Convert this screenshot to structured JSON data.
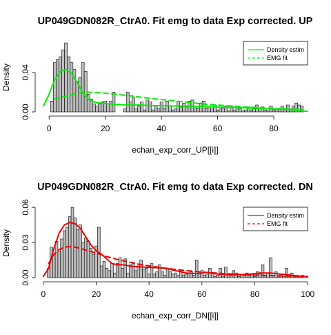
{
  "chart_data": [
    {
      "type": "bar",
      "title": "UP049GDN082R_CtrA0. Fit emg to data Exp corrected. UP",
      "xlabel": "echan_exp_corr_UP[[i]]",
      "ylabel": "Density",
      "xlim": [
        -3,
        93
      ],
      "ylim": [
        0,
        0.075
      ],
      "xticks": [
        "0",
        "20",
        "40",
        "60",
        "80"
      ],
      "yticks": [
        "0.00",
        "0.04"
      ],
      "grid": false,
      "legend_position": "top-right",
      "bin_width": 1,
      "bins_x": [
        1,
        2,
        3,
        4,
        5,
        6,
        7,
        8,
        9,
        10,
        11,
        12,
        13,
        14,
        15,
        16,
        17,
        18,
        19,
        20,
        21,
        22,
        23,
        27,
        28,
        29,
        30,
        31,
        32,
        33,
        34,
        35,
        36,
        37,
        38,
        39,
        40,
        41,
        42,
        43,
        44,
        45,
        46,
        47,
        48,
        49,
        50,
        51,
        52,
        53,
        54,
        55,
        56,
        57,
        58,
        59,
        60,
        61,
        62,
        63,
        64,
        65,
        66,
        67,
        68,
        69,
        70,
        71,
        72,
        73,
        74,
        75,
        76,
        77,
        78,
        79,
        80,
        81,
        82,
        83,
        84,
        85,
        86,
        87,
        88,
        89,
        90
      ],
      "density": [
        0.011,
        0.05,
        0.053,
        0.056,
        0.063,
        0.07,
        0.056,
        0.05,
        0.043,
        0.031,
        0.035,
        0.05,
        0.041,
        0.018,
        0.013,
        0.008,
        0.006,
        0.008,
        0.01,
        0.011,
        0.008,
        0.011,
        0.02,
        0.003,
        0.02,
        0.01,
        0.015,
        0.003,
        0.006,
        0.01,
        0.002,
        0.012,
        0.01,
        0.002,
        0.006,
        0.003,
        0.01,
        0.004,
        0.011,
        0.006,
        0.002,
        0.003,
        0.011,
        0.005,
        0.009,
        0.005,
        0.011,
        0.012,
        0.006,
        0.004,
        0.009,
        0.011,
        0.004,
        0.005,
        0.003,
        0.007,
        0.002,
        0.003,
        0.004,
        0.006,
        0.001,
        0.006,
        0.002,
        0.006,
        0.003,
        0.001,
        0.002,
        0.005,
        0.002,
        0.003,
        0.007,
        0.003,
        0.005,
        0.002,
        0.001,
        0.006,
        0.002,
        0.003,
        0.001,
        0.006,
        0.003,
        0.007,
        0.003,
        0.006,
        0.009,
        0.007,
        0.006
      ],
      "series": [
        {
          "name": "Density estim",
          "color": "#00ee00",
          "dash": "solid",
          "x": [
            -2,
            0,
            2,
            4,
            6,
            8,
            10,
            12,
            14,
            16,
            18,
            20,
            24,
            28,
            32,
            36,
            40,
            45,
            50,
            55,
            60,
            65,
            70,
            75,
            80,
            85,
            90,
            92
          ],
          "y": [
            0.006,
            0.018,
            0.033,
            0.041,
            0.043,
            0.039,
            0.03,
            0.019,
            0.013,
            0.01,
            0.009,
            0.0085,
            0.0075,
            0.007,
            0.007,
            0.0065,
            0.0063,
            0.006,
            0.0058,
            0.0055,
            0.005,
            0.0045,
            0.004,
            0.0035,
            0.003,
            0.0025,
            0.001,
            0.0005
          ]
        },
        {
          "name": "EMG fit",
          "color": "#00ee00",
          "dash": "dashed",
          "x": [
            2,
            4,
            6,
            8,
            10,
            12,
            14,
            18,
            20,
            25,
            30,
            35,
            40,
            45,
            50,
            55,
            60,
            65,
            70,
            75,
            80,
            85,
            90
          ],
          "y": [
            0.013,
            0.0145,
            0.016,
            0.0175,
            0.019,
            0.0195,
            0.02,
            0.0195,
            0.019,
            0.0175,
            0.016,
            0.014,
            0.0125,
            0.011,
            0.0095,
            0.008,
            0.007,
            0.006,
            0.005,
            0.0043,
            0.0036,
            0.003,
            0.0025
          ]
        }
      ]
    },
    {
      "type": "bar",
      "title": "UP049GDN082R_CtrA0. Fit emg to data Exp corrected. DN",
      "xlabel": "echan_exp_corr_DN[[i]]",
      "ylabel": "Density",
      "xlim": [
        -1,
        101
      ],
      "ylim": [
        0,
        0.063
      ],
      "xticks": [
        "0",
        "20",
        "40",
        "60",
        "80",
        "100"
      ],
      "yticks": [
        "0.00",
        "0.03",
        "0.06"
      ],
      "grid": false,
      "legend_position": "top-right",
      "bin_width": 1,
      "bins_x": [
        2,
        3,
        4,
        5,
        6,
        7,
        8,
        9,
        10,
        11,
        12,
        13,
        14,
        15,
        16,
        17,
        18,
        19,
        20,
        21,
        22,
        23,
        24,
        25,
        26,
        27,
        28,
        29,
        30,
        31,
        32,
        33,
        34,
        35,
        36,
        37,
        38,
        39,
        40,
        41,
        42,
        43,
        44,
        45,
        46,
        47,
        48,
        49,
        50,
        51,
        52,
        53,
        54,
        55,
        56,
        57,
        58,
        59,
        60,
        61,
        62,
        63,
        64,
        65,
        66,
        67,
        68,
        69,
        70,
        71,
        72,
        73,
        74,
        75,
        76,
        77,
        78,
        79,
        80,
        81,
        82,
        83,
        84,
        85,
        86,
        87,
        88,
        89,
        90,
        91,
        92,
        93,
        94,
        95,
        96,
        97,
        98
      ],
      "density": [
        0.008,
        0.026,
        0.02,
        0.031,
        0.022,
        0.033,
        0.04,
        0.043,
        0.052,
        0.06,
        0.051,
        0.041,
        0.045,
        0.03,
        0.034,
        0.031,
        0.025,
        0.02,
        0.027,
        0.043,
        0.01,
        0.014,
        0.008,
        0.006,
        0.012,
        0.004,
        0.012,
        0.017,
        0.008,
        0.016,
        0.004,
        0.011,
        0.013,
        0.006,
        0.01,
        0.015,
        0.007,
        0.008,
        0.003,
        0.012,
        0.003,
        0.005,
        0.011,
        0.005,
        0.002,
        0.008,
        0.005,
        0.003,
        0.004,
        0.002,
        0.006,
        0.002,
        0.003,
        0.004,
        0.005,
        0.002,
        0.015,
        0.004,
        0.006,
        0.002,
        0.003,
        0.008,
        0.004,
        0.001,
        0.002,
        0.008,
        0.001,
        0.009,
        0.003,
        0.002,
        0.006,
        0.004,
        0.001,
        0.003,
        0.002,
        0.004,
        0.002,
        0.003,
        0.001,
        0.005,
        0.003,
        0.011,
        0.002,
        0.004,
        0.017,
        0.002,
        0.005,
        0.002,
        0.003,
        0.001,
        0.008,
        0.002,
        0.004,
        0.001,
        0.002,
        0.001,
        0.002
      ],
      "series": [
        {
          "name": "Density estim",
          "color": "#ee0000",
          "dash": "solid",
          "x": [
            0,
            2,
            4,
            6,
            8,
            10,
            12,
            14,
            16,
            18,
            20,
            22,
            24,
            26,
            28,
            30,
            34,
            38,
            42,
            46,
            50,
            54,
            58,
            62,
            66,
            70,
            74,
            78,
            82,
            86,
            90,
            94,
            98,
            100
          ],
          "y": [
            0.001,
            0.008,
            0.025,
            0.038,
            0.045,
            0.047,
            0.046,
            0.042,
            0.035,
            0.028,
            0.023,
            0.02,
            0.016,
            0.012,
            0.011,
            0.011,
            0.0095,
            0.009,
            0.0085,
            0.008,
            0.006,
            0.004,
            0.0035,
            0.0045,
            0.003,
            0.0025,
            0.0025,
            0.003,
            0.004,
            0.004,
            0.003,
            0.002,
            0.001,
            0.0005
          ]
        },
        {
          "name": "EMG fit",
          "color": "#ee0000",
          "dash": "dashed",
          "x": [
            2,
            4,
            6,
            8,
            10,
            12,
            14,
            16,
            20,
            24,
            28,
            32,
            36,
            40,
            45,
            50,
            55,
            60,
            65,
            70,
            75,
            80,
            85,
            90,
            95,
            100
          ],
          "y": [
            0.012,
            0.02,
            0.024,
            0.026,
            0.0265,
            0.026,
            0.025,
            0.0235,
            0.021,
            0.018,
            0.0155,
            0.0135,
            0.0115,
            0.01,
            0.0085,
            0.007,
            0.0058,
            0.0048,
            0.004,
            0.0033,
            0.0027,
            0.0022,
            0.0018,
            0.0015,
            0.0012,
            0.001
          ]
        }
      ]
    }
  ]
}
